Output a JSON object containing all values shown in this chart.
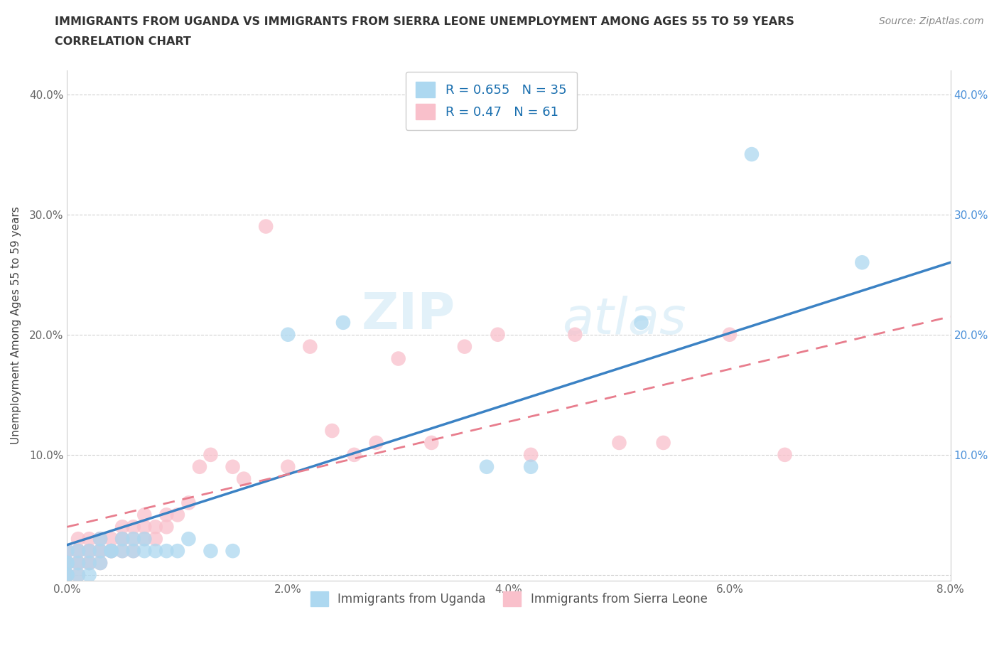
{
  "title_line1": "IMMIGRANTS FROM UGANDA VS IMMIGRANTS FROM SIERRA LEONE UNEMPLOYMENT AMONG AGES 55 TO 59 YEARS",
  "title_line2": "CORRELATION CHART",
  "source": "Source: ZipAtlas.com",
  "ylabel": "Unemployment Among Ages 55 to 59 years",
  "xlim": [
    0.0,
    0.08
  ],
  "ylim": [
    -0.005,
    0.42
  ],
  "xticks": [
    0.0,
    0.02,
    0.04,
    0.06,
    0.08
  ],
  "xticklabels": [
    "0.0%",
    "2.0%",
    "4.0%",
    "6.0%",
    "8.0%"
  ],
  "yticks": [
    0.0,
    0.1,
    0.2,
    0.3,
    0.4
  ],
  "yticklabels": [
    "",
    "10.0%",
    "20.0%",
    "30.0%",
    "40.0%"
  ],
  "uganda_color": "#ADD8F0",
  "sierra_leone_color": "#F9C0CB",
  "uganda_line_color": "#3B82C4",
  "sierra_leone_line_color": "#E87D8D",
  "uganda_R": 0.655,
  "uganda_N": 35,
  "sierra_leone_R": 0.47,
  "sierra_leone_N": 61,
  "legend_label_uganda": "Immigrants from Uganda",
  "legend_label_sierra": "Immigrants from Sierra Leone",
  "watermark_zip": "ZIP",
  "watermark_atlas": "atlas",
  "uganda_x": [
    0.0,
    0.0,
    0.0,
    0.0,
    0.0,
    0.001,
    0.001,
    0.001,
    0.002,
    0.002,
    0.002,
    0.003,
    0.003,
    0.003,
    0.004,
    0.004,
    0.005,
    0.005,
    0.006,
    0.006,
    0.007,
    0.007,
    0.008,
    0.009,
    0.01,
    0.011,
    0.013,
    0.015,
    0.02,
    0.025,
    0.038,
    0.042,
    0.052,
    0.062,
    0.072
  ],
  "uganda_y": [
    0.0,
    0.0,
    0.01,
    0.01,
    0.02,
    0.0,
    0.01,
    0.02,
    0.0,
    0.01,
    0.02,
    0.01,
    0.02,
    0.03,
    0.02,
    0.02,
    0.02,
    0.03,
    0.02,
    0.03,
    0.02,
    0.03,
    0.02,
    0.02,
    0.02,
    0.03,
    0.02,
    0.02,
    0.2,
    0.21,
    0.09,
    0.09,
    0.21,
    0.35,
    0.26
  ],
  "sierra_leone_x": [
    0.0,
    0.0,
    0.0,
    0.0,
    0.0,
    0.0,
    0.001,
    0.001,
    0.001,
    0.001,
    0.001,
    0.001,
    0.002,
    0.002,
    0.002,
    0.002,
    0.002,
    0.003,
    0.003,
    0.003,
    0.003,
    0.003,
    0.004,
    0.004,
    0.004,
    0.005,
    0.005,
    0.005,
    0.005,
    0.006,
    0.006,
    0.006,
    0.007,
    0.007,
    0.007,
    0.008,
    0.008,
    0.009,
    0.009,
    0.01,
    0.011,
    0.012,
    0.013,
    0.015,
    0.016,
    0.018,
    0.02,
    0.022,
    0.024,
    0.026,
    0.028,
    0.03,
    0.033,
    0.036,
    0.039,
    0.042,
    0.046,
    0.05,
    0.054,
    0.06,
    0.065
  ],
  "sierra_leone_y": [
    0.0,
    0.0,
    0.01,
    0.01,
    0.02,
    0.02,
    0.0,
    0.01,
    0.01,
    0.02,
    0.02,
    0.03,
    0.01,
    0.01,
    0.02,
    0.02,
    0.03,
    0.01,
    0.02,
    0.02,
    0.03,
    0.03,
    0.02,
    0.02,
    0.03,
    0.02,
    0.03,
    0.03,
    0.04,
    0.02,
    0.03,
    0.04,
    0.03,
    0.04,
    0.05,
    0.03,
    0.04,
    0.04,
    0.05,
    0.05,
    0.06,
    0.09,
    0.1,
    0.09,
    0.08,
    0.29,
    0.09,
    0.19,
    0.12,
    0.1,
    0.11,
    0.18,
    0.11,
    0.19,
    0.2,
    0.1,
    0.2,
    0.11,
    0.11,
    0.2,
    0.1
  ],
  "uganda_line_x0": 0.0,
  "uganda_line_x1": 0.08,
  "uganda_line_y0": 0.025,
  "uganda_line_y1": 0.26,
  "sierra_line_x0": 0.0,
  "sierra_line_x1": 0.08,
  "sierra_line_y0": 0.04,
  "sierra_line_y1": 0.215
}
